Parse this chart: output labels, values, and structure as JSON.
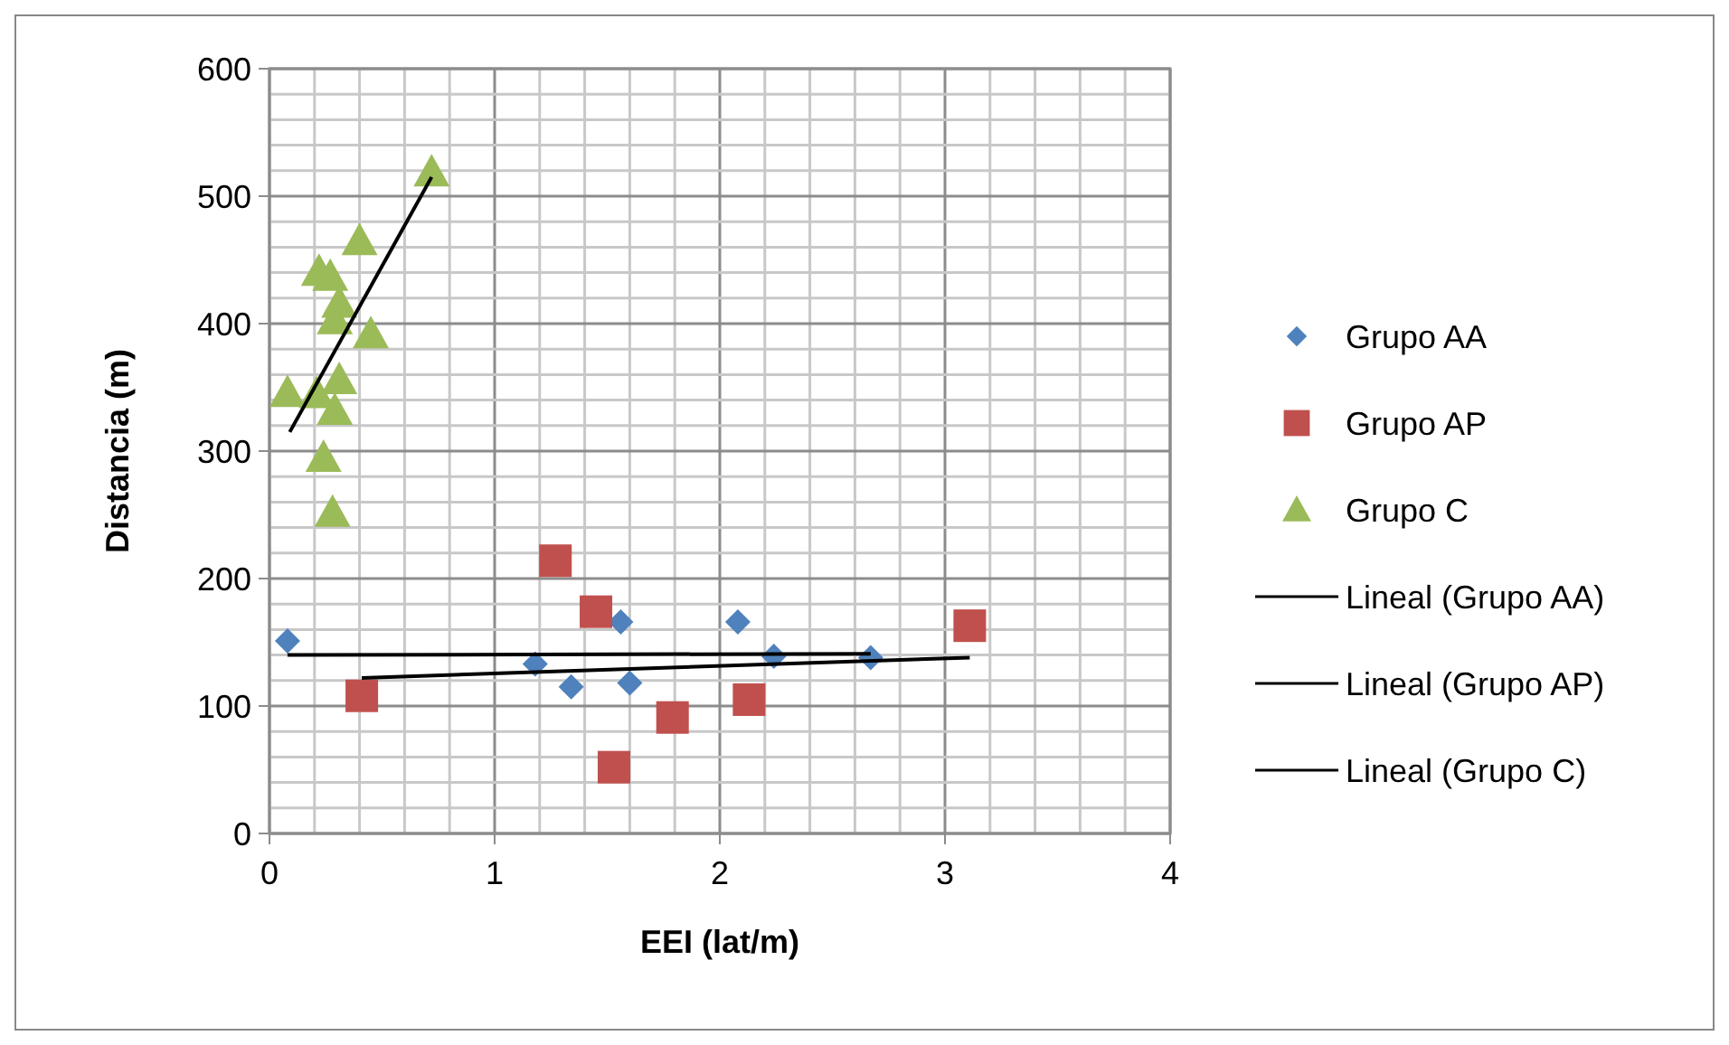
{
  "chart_data": {
    "type": "scatter",
    "xlabel": "EEI (lat/m)",
    "ylabel": "Distancia (m)",
    "xlim": [
      0,
      4
    ],
    "ylim": [
      0,
      600
    ],
    "xticks": [
      0,
      {
        "value": 0.2,
        "label": null
      },
      {
        "value": 0.4,
        "label": null
      },
      {
        "value": 0.6,
        "label": null
      },
      {
        "value": 0.8,
        "label": null
      },
      1,
      {
        "value": 1.2,
        "label": null
      },
      {
        "value": 1.4,
        "label": null
      },
      {
        "value": 1.6,
        "label": null
      },
      {
        "value": 1.8,
        "label": null
      },
      2,
      {
        "value": 2.2,
        "label": null
      },
      {
        "value": 2.4,
        "label": null
      },
      {
        "value": 2.6,
        "label": null
      },
      {
        "value": 2.8,
        "label": null
      },
      3,
      {
        "value": 3.2,
        "label": null
      },
      {
        "value": 3.4,
        "label": null
      },
      {
        "value": 3.6,
        "label": null
      },
      {
        "value": 3.8,
        "label": null
      },
      4
    ],
    "yticks": [
      0,
      {
        "value": 20,
        "label": null
      },
      {
        "value": 40,
        "label": null
      },
      {
        "value": 60,
        "label": null
      },
      {
        "value": 80,
        "label": null
      },
      100,
      {
        "value": 120,
        "label": null
      },
      {
        "value": 140,
        "label": null
      },
      {
        "value": 160,
        "label": null
      },
      {
        "value": 180,
        "label": null
      },
      200,
      {
        "value": 220,
        "label": null
      },
      {
        "value": 240,
        "label": null
      },
      {
        "value": 260,
        "label": null
      },
      {
        "value": 280,
        "label": null
      },
      300,
      {
        "value": 320,
        "label": null
      },
      {
        "value": 340,
        "label": null
      },
      {
        "value": 360,
        "label": null
      },
      {
        "value": 380,
        "label": null
      },
      400,
      {
        "value": 420,
        "label": null
      },
      {
        "value": 440,
        "label": null
      },
      {
        "value": 460,
        "label": null
      },
      {
        "value": 480,
        "label": null
      },
      500,
      {
        "value": 520,
        "label": null
      },
      {
        "value": 540,
        "label": null
      },
      {
        "value": 560,
        "label": null
      },
      {
        "value": 580,
        "label": null
      },
      600
    ],
    "grid": true,
    "legend": "right",
    "series": [
      {
        "name": "Grupo AA",
        "marker": "diamond",
        "color": "#4f81bd",
        "x": [
          0.08,
          1.18,
          1.34,
          1.6,
          1.56,
          2.08,
          2.24,
          2.67
        ],
        "values": [
          151,
          133,
          115,
          118,
          166,
          166,
          139,
          138
        ]
      },
      {
        "name": "Grupo AP",
        "marker": "square",
        "color": "#c0504d",
        "x": [
          0.41,
          1.27,
          1.45,
          1.53,
          1.79,
          2.13,
          3.11
        ],
        "values": [
          108,
          214,
          174,
          52,
          91,
          105,
          163
        ]
      },
      {
        "name": "Grupo C",
        "marker": "triangle",
        "color": "#9bbb59",
        "x": [
          0.72,
          0.4,
          0.22,
          0.27,
          0.31,
          0.29,
          0.45,
          0.08,
          0.31,
          0.21,
          0.29,
          0.24,
          0.28
        ],
        "values": [
          519,
          465,
          441,
          437,
          416,
          403,
          392,
          346,
          356,
          345,
          332,
          295,
          252
        ]
      },
      {
        "name": "Lineal (Grupo AA)",
        "type": "line",
        "marker": "none",
        "color": "#000000",
        "x": [
          0.08,
          2.67
        ],
        "values": [
          140,
          141
        ]
      },
      {
        "name": "Lineal (Grupo AP)",
        "type": "line",
        "marker": "none",
        "color": "#000000",
        "x": [
          0.41,
          3.11
        ],
        "values": [
          122,
          138
        ]
      },
      {
        "name": "Lineal (Grupo C)",
        "type": "line",
        "marker": "none",
        "color": "#000000",
        "x": [
          0.09,
          0.72
        ],
        "values": [
          315,
          515
        ]
      }
    ]
  }
}
